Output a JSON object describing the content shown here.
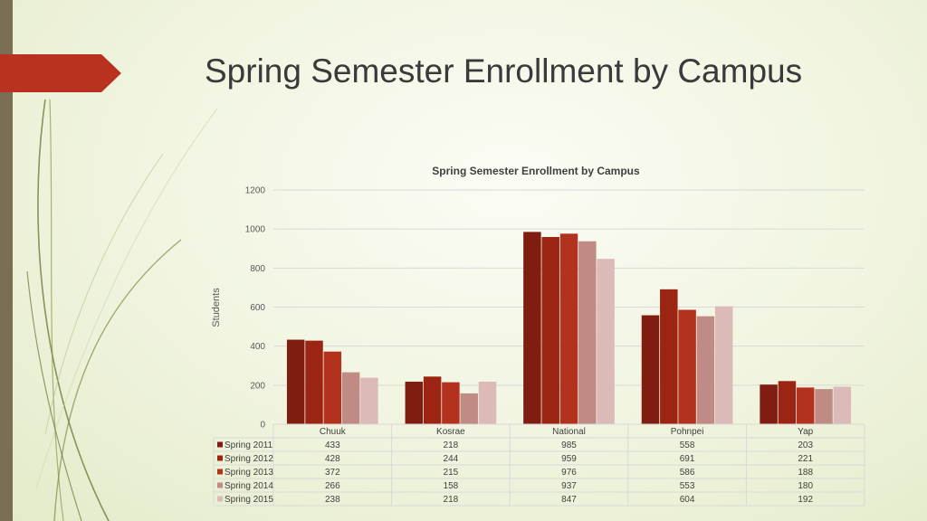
{
  "slide": {
    "title": "Spring Semester Enrollment by Campus"
  },
  "colors": {
    "accent": "#b8321f",
    "sidebar": "#7a6e55"
  },
  "chart_data": {
    "type": "bar",
    "title": "Spring Semester Enrollment by Campus",
    "xlabel": "",
    "ylabel": "Students",
    "ylim": [
      0,
      1200
    ],
    "yticks": [
      0,
      200,
      400,
      600,
      800,
      1000,
      1200
    ],
    "grid": true,
    "legend": "data-table-below",
    "categories": [
      "Chuuk",
      "Kosrae",
      "National",
      "Pohnpei",
      "Yap"
    ],
    "series": [
      {
        "name": "Spring 2011",
        "color": "#7f1e10",
        "values": [
          433,
          218,
          985,
          558,
          203
        ]
      },
      {
        "name": "Spring 2012",
        "color": "#9b2412",
        "values": [
          428,
          244,
          959,
          691,
          221
        ]
      },
      {
        "name": "Spring 2013",
        "color": "#b2321d",
        "values": [
          372,
          215,
          976,
          586,
          188
        ]
      },
      {
        "name": "Spring 2014",
        "color": "#c08a85",
        "values": [
          266,
          158,
          937,
          553,
          180
        ]
      },
      {
        "name": "Spring 2015",
        "color": "#dcbab8",
        "values": [
          238,
          218,
          847,
          604,
          192
        ]
      }
    ]
  }
}
